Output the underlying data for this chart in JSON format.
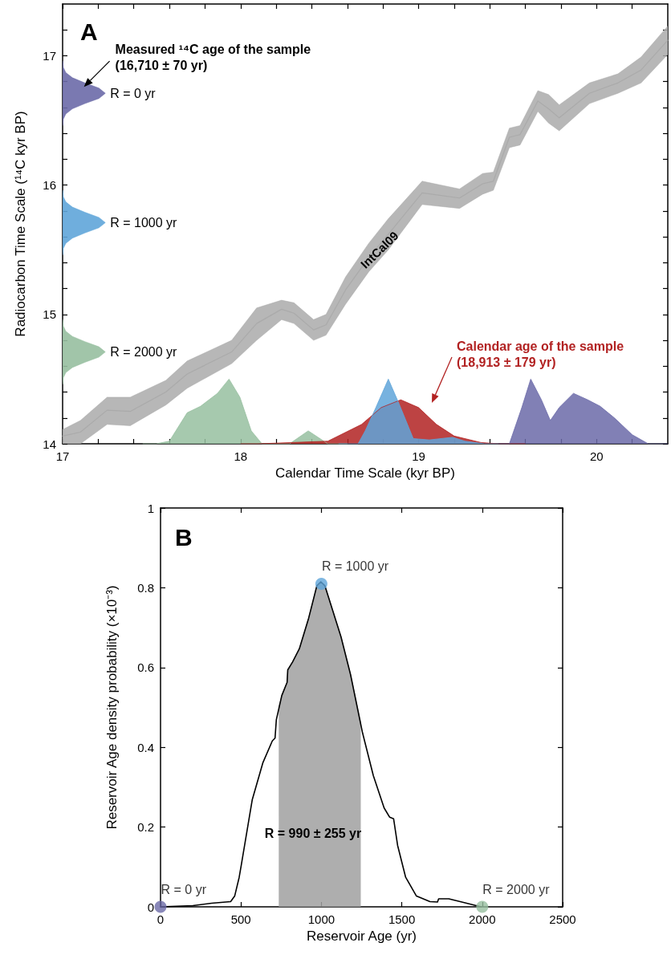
{
  "chart_data": [
    {
      "type": "area",
      "xlabel": "Calendar Time Scale (kyr BP)",
      "ylabel": "Radiocarbon Time Scale (¹⁴C kyr BP)",
      "xlim": [
        17,
        20.4
      ],
      "ylim": [
        14,
        17.4
      ],
      "xticks": [
        17,
        {
          "value": 17.2,
          "label": null
        },
        {
          "value": 17.4,
          "label": null
        },
        {
          "value": 17.6,
          "label": null
        },
        {
          "value": 17.8,
          "label": null
        },
        18,
        {
          "value": 18.2,
          "label": null
        },
        {
          "value": 18.4,
          "label": null
        },
        {
          "value": 18.6,
          "label": null
        },
        {
          "value": 18.8,
          "label": null
        },
        19,
        {
          "value": 19.2,
          "label": null
        },
        {
          "value": 19.4,
          "label": null
        },
        {
          "value": 19.6,
          "label": null
        },
        {
          "value": 19.8,
          "label": null
        },
        20,
        {
          "value": 20.2,
          "label": null
        }
      ],
      "yticks": [
        14,
        {
          "value": 14.2,
          "label": null
        },
        {
          "value": 14.4,
          "label": null
        },
        {
          "value": 14.6,
          "label": null
        },
        {
          "value": 14.8,
          "label": null
        },
        15,
        {
          "value": 15.2,
          "label": null
        },
        {
          "value": 15.4,
          "label": null
        },
        {
          "value": 15.6,
          "label": null
        },
        {
          "value": 15.8,
          "label": null
        },
        16,
        {
          "value": 16.2,
          "label": null
        },
        {
          "value": 16.4,
          "label": null
        },
        {
          "value": 16.6,
          "label": null
        },
        {
          "value": 16.8,
          "label": null
        },
        17,
        {
          "value": 17.2,
          "label": null
        }
      ],
      "series": [
        {
          "type": "line",
          "color": "#aaaaaa",
          "x": [
            17.0,
            17.1,
            17.25,
            17.38,
            17.58,
            17.7,
            17.95,
            18.09,
            18.23,
            18.3,
            18.41,
            18.48,
            18.59,
            18.72,
            18.83,
            19.02,
            19.23,
            19.36,
            19.42,
            19.51,
            19.57,
            19.67,
            19.73,
            19.79,
            19.96,
            20.12,
            20.25,
            20.4
          ],
          "values": [
            14.06,
            14.09,
            14.26,
            14.25,
            14.4,
            14.54,
            14.71,
            14.93,
            15.04,
            15.01,
            14.88,
            14.92,
            15.19,
            15.44,
            15.62,
            15.94,
            15.9,
            16.01,
            16.03,
            16.37,
            16.39,
            16.65,
            16.59,
            16.52,
            16.71,
            16.79,
            16.89,
            17.12
          ],
          "upper": [
            14.11,
            14.18,
            14.36,
            14.36,
            14.49,
            14.64,
            14.8,
            15.05,
            15.11,
            15.09,
            14.96,
            15.0,
            15.29,
            15.55,
            15.74,
            16.03,
            15.97,
            16.09,
            16.1,
            16.44,
            16.46,
            16.73,
            16.7,
            16.62,
            16.79,
            16.86,
            16.99,
            17.23
          ],
          "lower": [
            14.0,
            14.0,
            14.15,
            14.14,
            14.3,
            14.43,
            14.62,
            14.8,
            14.96,
            14.93,
            14.8,
            14.84,
            15.08,
            15.33,
            15.5,
            15.85,
            15.82,
            15.93,
            15.96,
            16.29,
            16.31,
            16.57,
            16.48,
            16.42,
            16.63,
            16.71,
            16.79,
            17.01
          ]
        },
        {
          "name": "R = 0 yr",
          "color": "#6b6aa8",
          "x": [
            17,
            17.004,
            17.018,
            17.055,
            17.125,
            17.204,
            17.24,
            17.204,
            17.125,
            17.055,
            17.018,
            17.004,
            17
          ],
          "values": [
            16.46,
            16.51,
            16.55,
            16.59,
            16.63,
            16.67,
            16.71,
            16.75,
            16.79,
            16.83,
            16.87,
            16.91,
            16.96
          ]
        },
        {
          "name": "R = 1000 yr",
          "color": "#5fa5d9",
          "x": [
            17,
            17.004,
            17.018,
            17.055,
            17.125,
            17.204,
            17.24,
            17.204,
            17.125,
            17.055,
            17.018,
            17.004,
            17
          ],
          "values": [
            15.46,
            15.51,
            15.55,
            15.59,
            15.63,
            15.67,
            15.71,
            15.75,
            15.79,
            15.83,
            15.87,
            15.91,
            15.96
          ]
        },
        {
          "name": "R = 2000 yr",
          "color": "#97bfa0",
          "x": [
            17,
            17.004,
            17.018,
            17.055,
            17.125,
            17.204,
            17.24,
            17.204,
            17.125,
            17.055,
            17.018,
            17.004,
            17
          ],
          "values": [
            14.46,
            14.51,
            14.55,
            14.59,
            14.63,
            14.67,
            14.71,
            14.75,
            14.79,
            14.83,
            14.87,
            14.91,
            14.96
          ]
        },
        {
          "color": "#97bfa0",
          "x": [
            17.45,
            17.525,
            17.6,
            17.7,
            17.775,
            17.87,
            17.935,
            17.996,
            18.06,
            18.12,
            18.2,
            18.275,
            18.38,
            18.49,
            18.6
          ],
          "values": [
            14.0,
            14.0,
            14.02,
            14.24,
            14.29,
            14.39,
            14.5,
            14.36,
            14.1,
            14.0,
            14.0,
            14.0,
            14.1,
            14.0,
            14.0
          ]
        },
        {
          "color": "#b22222",
          "x": [
            18.0,
            18.1,
            18.49,
            18.68,
            18.79,
            18.9,
            19.0,
            19.1,
            19.2,
            19.35,
            19.45,
            19.6
          ],
          "values": [
            14.0,
            14.0,
            14.02,
            14.15,
            14.28,
            14.34,
            14.28,
            14.15,
            14.06,
            14.01,
            14.0,
            14.0
          ]
        },
        {
          "color": "#5fa5d9",
          "x": [
            18.55,
            18.66,
            18.7,
            18.76,
            18.83,
            18.89,
            18.97,
            19.06,
            19.19,
            19.26,
            19.37,
            19.45
          ],
          "values": [
            14.0,
            14.0,
            14.1,
            14.28,
            14.5,
            14.31,
            14.04,
            14.03,
            14.05,
            14.02,
            14.0,
            14.0
          ]
        },
        {
          "color": "#6b6aa8",
          "x": [
            19.45,
            19.51,
            19.58,
            19.63,
            19.69,
            19.74,
            19.79,
            19.87,
            19.95,
            20.02,
            20.1,
            20.2,
            20.29,
            20.4
          ],
          "values": [
            14.0,
            14.0,
            14.28,
            14.5,
            14.34,
            14.18,
            14.28,
            14.39,
            14.34,
            14.29,
            14.2,
            14.07,
            14.0,
            14.0
          ]
        }
      ],
      "annotations": [
        "A",
        {
          "text": "Measured ¹⁴C age of the sample\n(16,710 ± 70 yr)",
          "x": 17.12,
          "y": 16.76
        },
        "Calendar age of the sample\n(18,913 ± 179 yr)",
        {
          "text": "IntCal09",
          "x": 18.78,
          "y": 15.5
        }
      ]
    },
    {
      "type": "line",
      "xlabel": "Reservoir Age (yr)",
      "ylabel": "Reservoir Age density probability (×10⁻³)",
      "xlim": [
        0,
        2500
      ],
      "ylim": [
        0,
        1
      ],
      "xticks": [
        0,
        500,
        1000,
        1500,
        2000,
        2500
      ],
      "yticks": [
        0,
        0.2,
        0.4,
        0.6,
        0.8,
        1
      ],
      "series": [
        {
          "type": "area",
          "color": "#a0a0a0",
          "x": [
            735,
            754,
            787,
            791,
            821,
            863,
            921,
            972,
            997,
            1022,
            1122,
            1181,
            1245
          ],
          "values": [
            0.5,
            0.53,
            0.563,
            0.594,
            0.614,
            0.647,
            0.724,
            0.805,
            0.815,
            0.805,
            0.677,
            0.583,
            0.46
          ]
        },
        {
          "color": "#000000",
          "x": [
            0,
            201,
            318,
            436,
            461,
            489,
            503,
            570,
            637,
            695,
            712,
            720,
            754,
            787,
            791,
            821,
            863,
            921,
            972,
            997,
            1022,
            1122,
            1181,
            1256,
            1323,
            1390,
            1424,
            1449,
            1474,
            1524,
            1591,
            1675,
            1722,
            1729,
            1792,
            1893,
            1993
          ],
          "values": [
            0,
            0.003,
            0.009,
            0.013,
            0.027,
            0.074,
            0.107,
            0.268,
            0.362,
            0.416,
            0.423,
            0.469,
            0.53,
            0.563,
            0.594,
            0.614,
            0.647,
            0.724,
            0.805,
            0.815,
            0.805,
            0.677,
            0.583,
            0.436,
            0.329,
            0.248,
            0.225,
            0.221,
            0.154,
            0.074,
            0.027,
            0.013,
            0.012,
            0.02,
            0.02,
            0.01,
            0
          ]
        },
        {
          "type": "scatter",
          "marker": "circle",
          "name": "R = 0 yr",
          "color": "#6b6aa8",
          "x": [
            0
          ],
          "values": [
            0
          ]
        },
        {
          "type": "scatter",
          "marker": "circle",
          "name": "R = 1000 yr",
          "color": "#5fa5d9",
          "x": [
            1000
          ],
          "values": [
            0.81
          ]
        },
        {
          "type": "scatter",
          "marker": "circle",
          "name": "R = 2000 yr",
          "color": "#97bfa0",
          "x": [
            2000
          ],
          "values": [
            0
          ]
        }
      ],
      "annotations": [
        "B",
        "R = 990 ± 255 yr"
      ]
    }
  ]
}
